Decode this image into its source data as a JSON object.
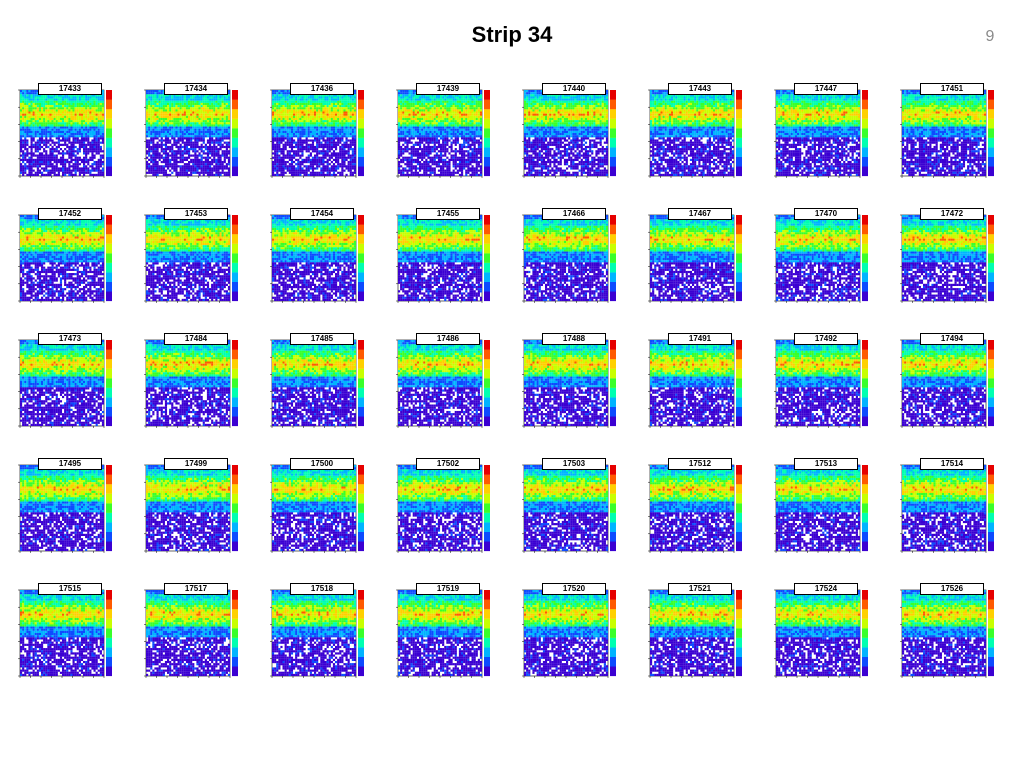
{
  "slide": {
    "title": "Strip 34",
    "number": "9"
  },
  "chart_data": {
    "type": "heatmap",
    "panel_labels": [
      "17433",
      "17434",
      "17436",
      "17439",
      "17440",
      "17443",
      "17447",
      "17451",
      "17452",
      "17453",
      "17454",
      "17455",
      "17466",
      "17467",
      "17470",
      "17472",
      "17473",
      "17484",
      "17485",
      "17486",
      "17488",
      "17491",
      "17492",
      "17494",
      "17495",
      "17499",
      "17500",
      "17502",
      "17503",
      "17512",
      "17513",
      "17514",
      "17515",
      "17517",
      "17518",
      "17519",
      "17520",
      "17521",
      "17524",
      "17526"
    ],
    "colormap": [
      "#3b00d2",
      "#0d4bff",
      "#00b4ff",
      "#00ffb0",
      "#39ff2a",
      "#c8ff00",
      "#ffd000",
      "#ff5a00",
      "#e60000"
    ]
  }
}
